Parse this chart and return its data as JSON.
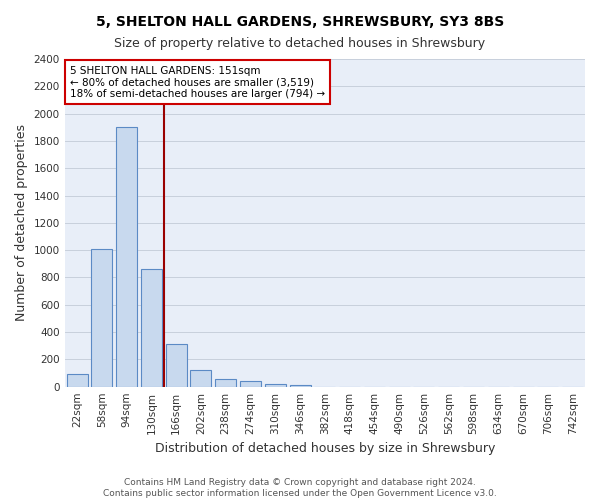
{
  "title": "5, SHELTON HALL GARDENS, SHREWSBURY, SY3 8BS",
  "subtitle": "Size of property relative to detached houses in Shrewsbury",
  "xlabel": "Distribution of detached houses by size in Shrewsbury",
  "ylabel": "Number of detached properties",
  "bar_labels": [
    "22sqm",
    "58sqm",
    "94sqm",
    "130sqm",
    "166sqm",
    "202sqm",
    "238sqm",
    "274sqm",
    "310sqm",
    "346sqm",
    "382sqm",
    "418sqm",
    "454sqm",
    "490sqm",
    "526sqm",
    "562sqm",
    "598sqm",
    "634sqm",
    "670sqm",
    "706sqm",
    "742sqm"
  ],
  "bar_values": [
    90,
    1010,
    1900,
    860,
    310,
    120,
    55,
    45,
    20,
    15,
    0,
    0,
    0,
    0,
    0,
    0,
    0,
    0,
    0,
    0,
    0
  ],
  "bar_color": "#c8d9ee",
  "bar_edge_color": "#5b8ac5",
  "vline_x": 3.5,
  "vline_color": "#990000",
  "annotation_text": "5 SHELTON HALL GARDENS: 151sqm\n← 80% of detached houses are smaller (3,519)\n18% of semi-detached houses are larger (794) →",
  "annotation_box_color": "#ffffff",
  "annotation_box_edge_color": "#cc0000",
  "ylim": [
    0,
    2400
  ],
  "yticks": [
    0,
    200,
    400,
    600,
    800,
    1000,
    1200,
    1400,
    1600,
    1800,
    2000,
    2200,
    2400
  ],
  "background_color": "#e8eef8",
  "grid_color": "#c8d0dc",
  "fig_bg_color": "#ffffff",
  "footer_line1": "Contains HM Land Registry data © Crown copyright and database right 2024.",
  "footer_line2": "Contains public sector information licensed under the Open Government Licence v3.0.",
  "title_fontsize": 10,
  "subtitle_fontsize": 9,
  "axis_label_fontsize": 9,
  "tick_fontsize": 7.5,
  "footer_fontsize": 6.5,
  "annotation_fontsize": 7.5
}
